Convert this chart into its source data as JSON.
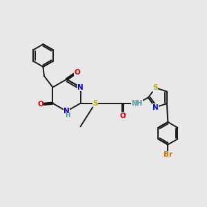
{
  "bg_color": "#e8e8e8",
  "bond_color": "#1a1a1a",
  "bond_width": 1.4,
  "atom_colors": {
    "N": "#0000dd",
    "O": "#dd0000",
    "S": "#bbaa00",
    "Br": "#cc7700",
    "C": "#1a1a1a",
    "H": "#5599aa"
  },
  "font_size": 7.5,
  "fig_size": [
    3.0,
    3.0
  ],
  "dpi": 100
}
